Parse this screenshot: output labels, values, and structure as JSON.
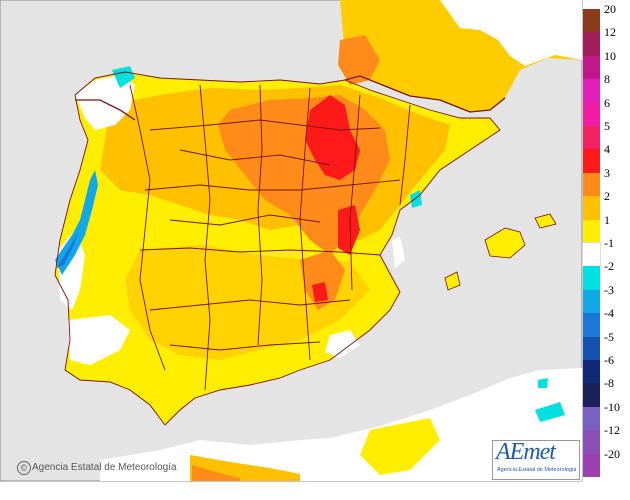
{
  "credit": {
    "symbol": "©",
    "text": "Agencia Estatal de Meteorología"
  },
  "logo": {
    "name": "AEmet",
    "subtitle": "Agencia Estatal de Meteorología"
  },
  "legend": {
    "items": [
      {
        "label": "20",
        "color": "#8b3a1a"
      },
      {
        "label": "12",
        "color": "#a01f5a"
      },
      {
        "label": "10",
        "color": "#c0188a"
      },
      {
        "label": "8",
        "color": "#e020b8"
      },
      {
        "label": "6",
        "color": "#f21ca4"
      },
      {
        "label": "5",
        "color": "#f22262"
      },
      {
        "label": "4",
        "color": "#ff1a1a"
      },
      {
        "label": "3",
        "color": "#ff8c1a"
      },
      {
        "label": "2",
        "color": "#ffc000"
      },
      {
        "label": "1",
        "color": "#ffee00"
      },
      {
        "label": "-1",
        "color": "#ffffff"
      },
      {
        "label": "-2",
        "color": "#00e0e0"
      },
      {
        "label": "-3",
        "color": "#12a8e8"
      },
      {
        "label": "-4",
        "color": "#1a78d8"
      },
      {
        "label": "-5",
        "color": "#1450b0"
      },
      {
        "label": "-6",
        "color": "#102a78"
      },
      {
        "label": "-8",
        "color": "#1a2058"
      },
      {
        "label": "-10",
        "color": "#7a60c0"
      },
      {
        "label": "-12",
        "color": "#8a50b8"
      },
      {
        "label": "-20",
        "color": "#9a40b0"
      }
    ]
  },
  "colors": {
    "sea": "#e4e4e4",
    "land_out": "#ffffff",
    "border": "#7a1010"
  }
}
